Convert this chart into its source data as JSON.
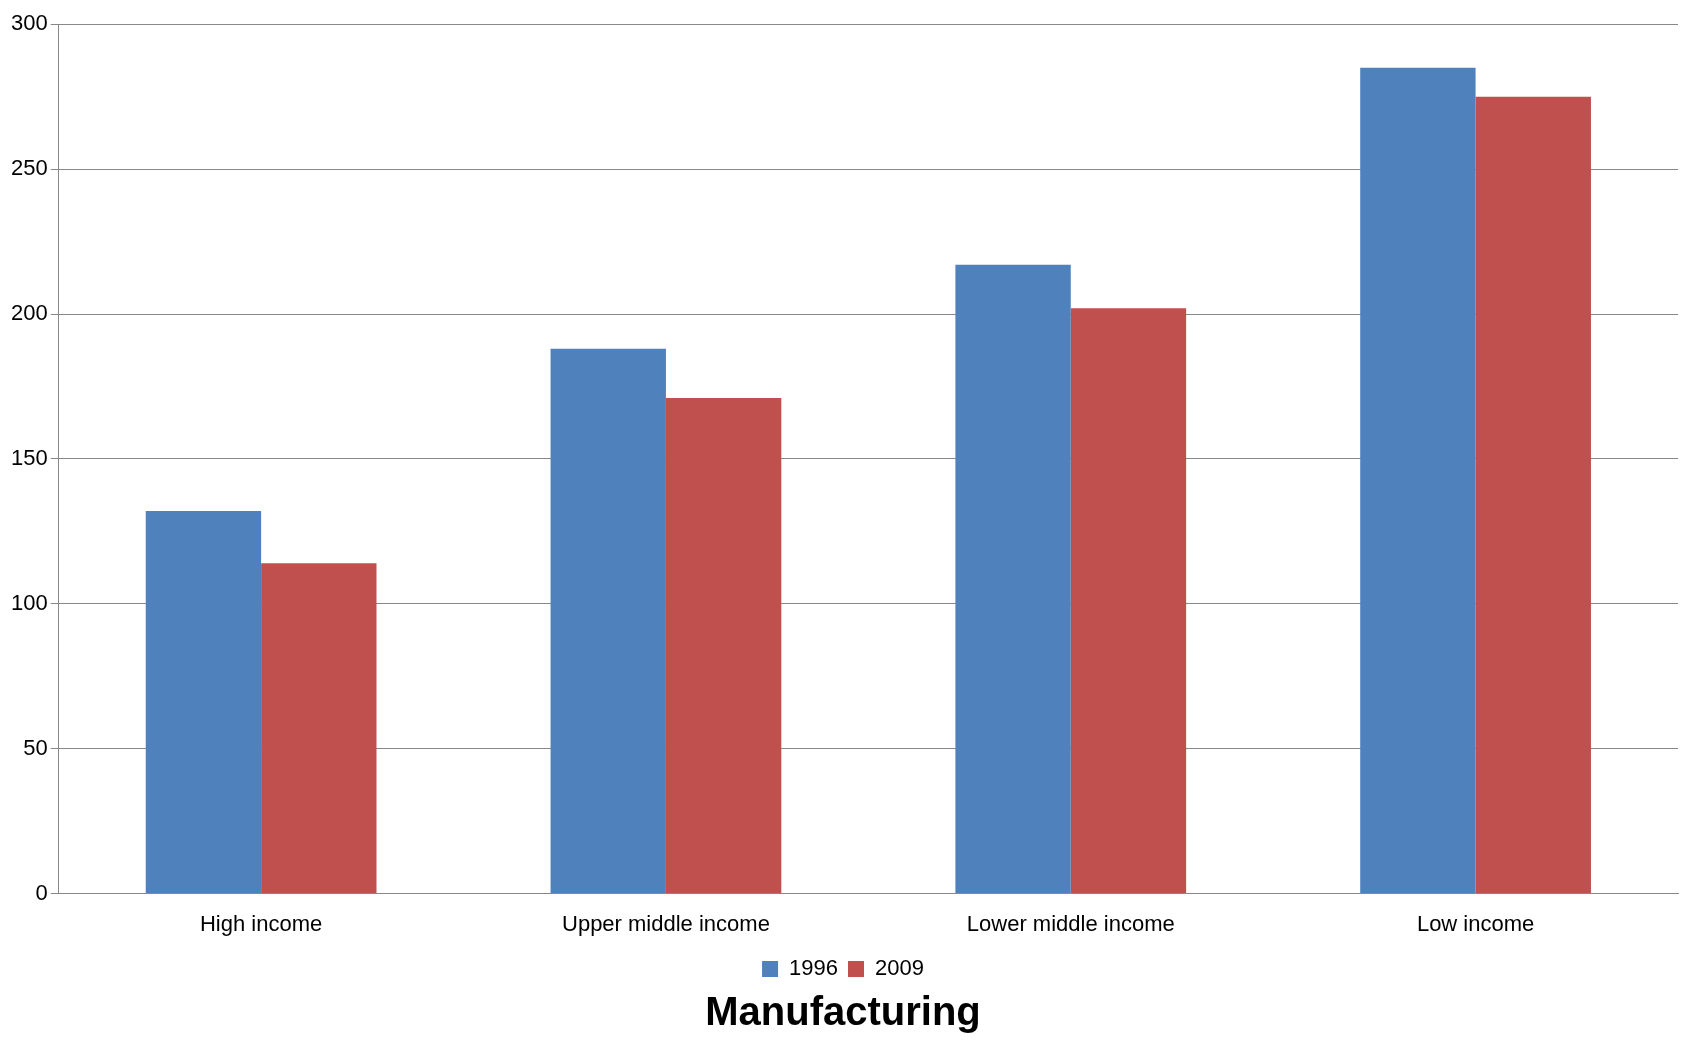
{
  "chart_data": {
    "type": "bar",
    "title": "Manufacturing",
    "categories": [
      "High income",
      "Upper middle income",
      "Lower middle income",
      "Low income"
    ],
    "series": [
      {
        "name": "1996",
        "color": "#4f81bd",
        "values": [
          132,
          188,
          217,
          285
        ]
      },
      {
        "name": "2009",
        "color": "#c0504d",
        "values": [
          114,
          171,
          202,
          275
        ]
      }
    ],
    "ylim": [
      0,
      300
    ],
    "yticks": [
      0,
      50,
      100,
      150,
      200,
      250,
      300
    ],
    "grid": "y",
    "legend": "bottom"
  }
}
